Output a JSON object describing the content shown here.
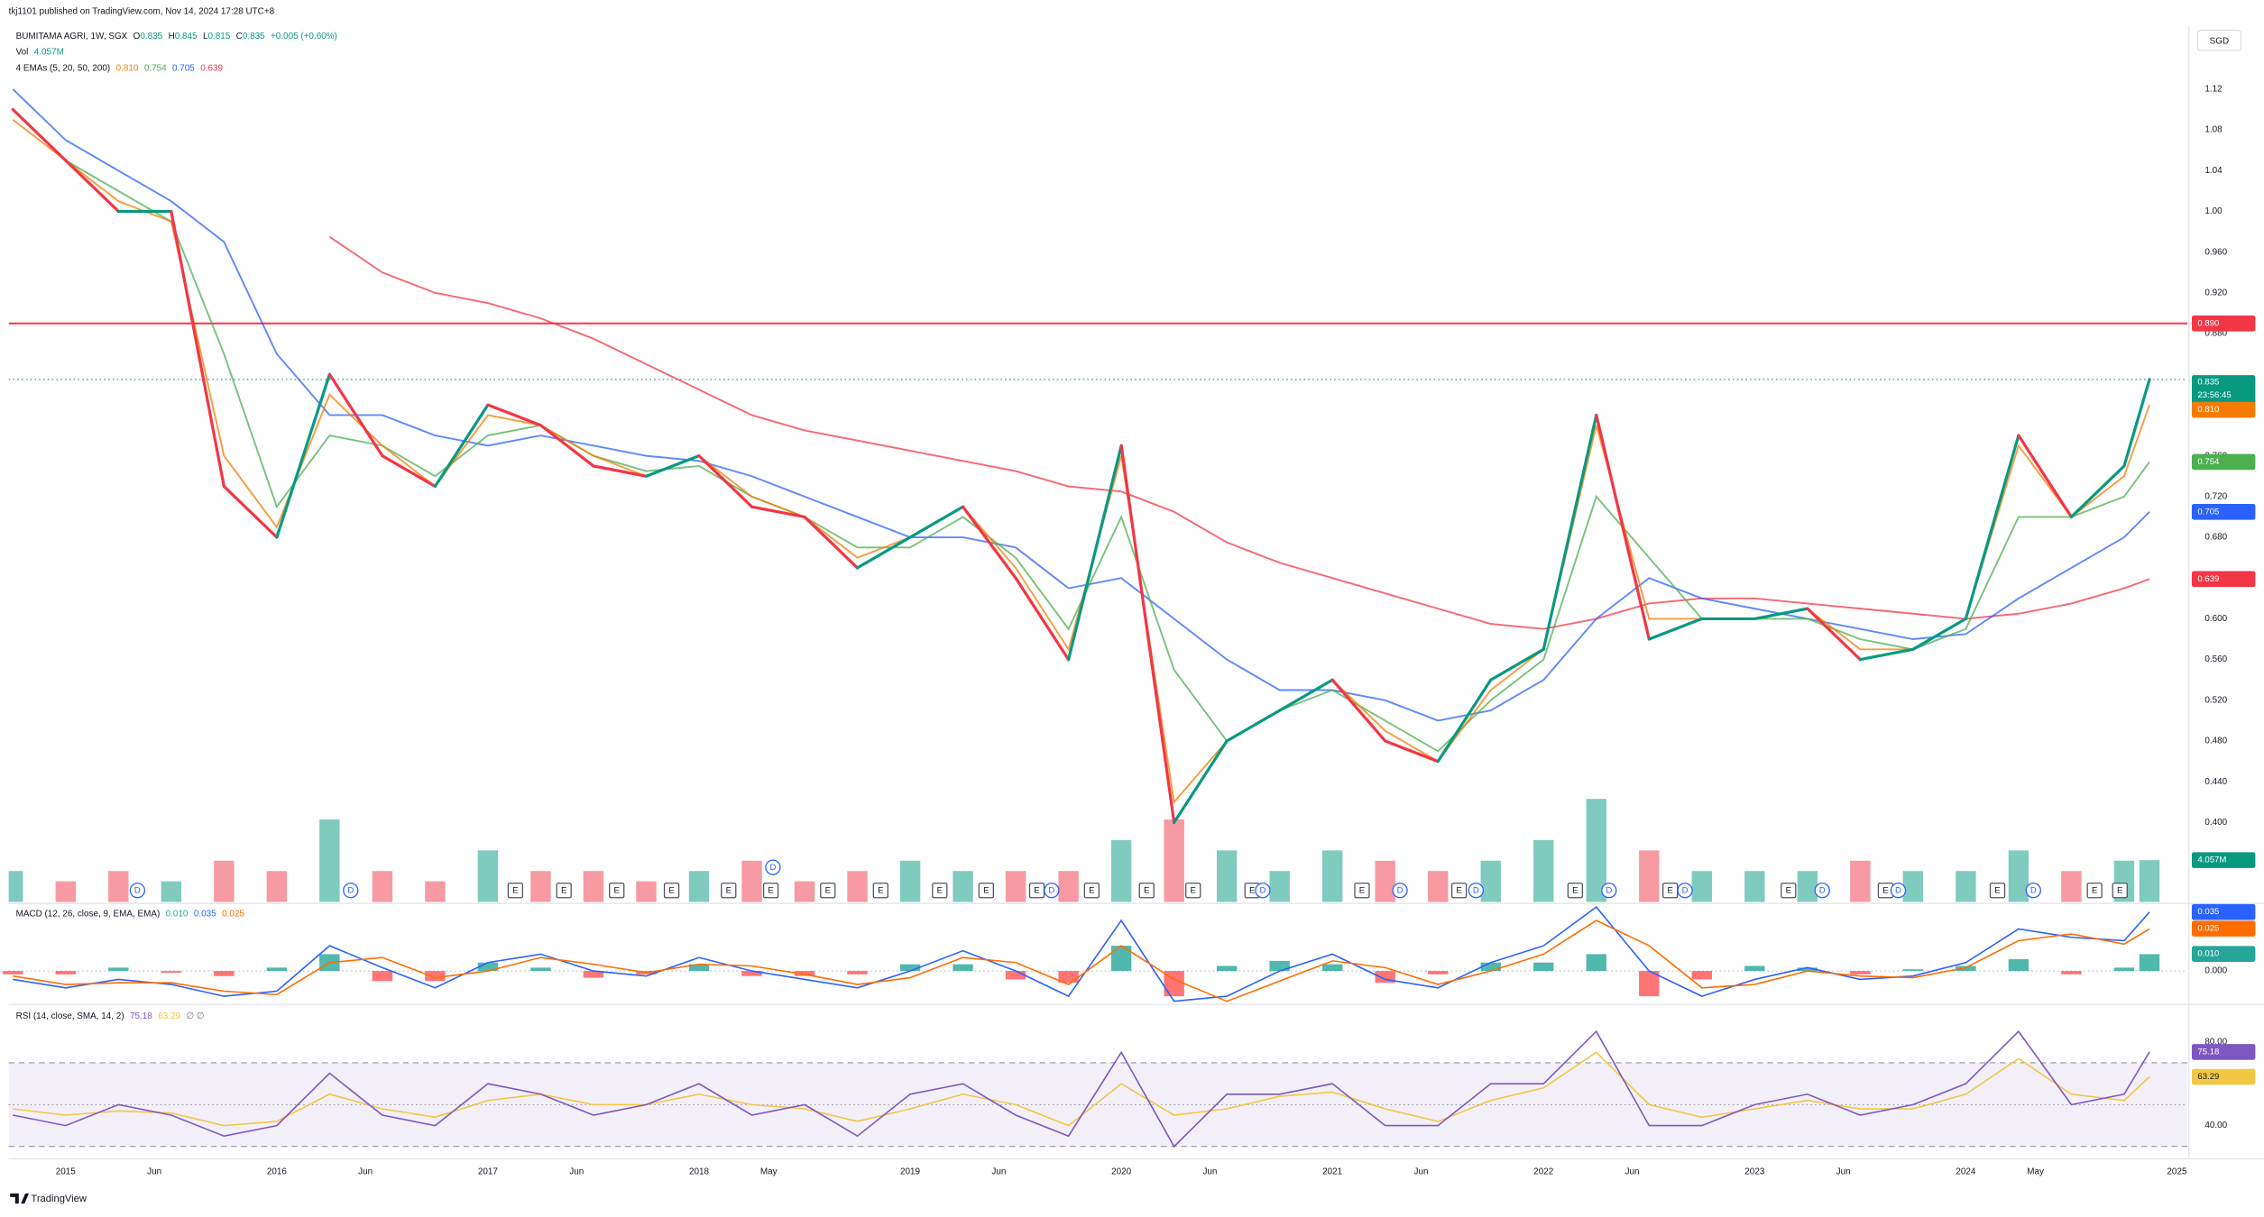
{
  "header": {
    "publisher": "tkj1101 published on TradingView.com, Nov 14, 2024 17:28 UTC+8",
    "currency": "SGD",
    "brand": "TradingView"
  },
  "chart_data": [
    {
      "type": "line",
      "title": "BUMITAMA AGRI, 1W, SGX",
      "ohlc": [
        {
          "label": "O",
          "value": 0.835
        },
        {
          "label": "H",
          "value": 0.845
        },
        {
          "label": "L",
          "value": 0.815
        },
        {
          "label": "C",
          "value": 0.835
        }
      ],
      "change": "+0.005 (+0.60%)",
      "x": [
        2014.75,
        2015,
        2015.25,
        2015.5,
        2015.75,
        2016,
        2016.25,
        2016.5,
        2016.75,
        2017,
        2017.25,
        2017.5,
        2017.75,
        2018,
        2018.25,
        2018.5,
        2018.75,
        2019,
        2019.25,
        2019.5,
        2019.75,
        2020,
        2020.25,
        2020.5,
        2020.75,
        2021,
        2021.25,
        2021.5,
        2021.75,
        2022,
        2022.25,
        2022.5,
        2022.75,
        2023,
        2023.25,
        2023.5,
        2023.75,
        2024,
        2024.25,
        2024.5,
        2024.75,
        2024.87
      ],
      "close": {
        "color": "#089981",
        "down_color": "#f23645",
        "countdown": "23:56:45",
        "values": [
          1.1,
          1.05,
          1.0,
          1.0,
          0.73,
          0.68,
          0.84,
          0.76,
          0.73,
          0.81,
          0.79,
          0.75,
          0.74,
          0.76,
          0.71,
          0.7,
          0.65,
          0.68,
          0.71,
          0.64,
          0.56,
          0.77,
          0.4,
          0.48,
          0.51,
          0.54,
          0.48,
          0.46,
          0.54,
          0.57,
          0.8,
          0.58,
          0.6,
          0.6,
          0.61,
          0.56,
          0.57,
          0.6,
          0.78,
          0.7,
          0.75,
          0.835
        ]
      },
      "emas": {
        "label": "4 EMAs (5, 20, 50, 200)",
        "series": [
          {
            "color": "#f57c00",
            "last_label": "0.810",
            "values": [
              1.09,
              1.05,
              1.01,
              0.99,
              0.76,
              0.69,
              0.82,
              0.77,
              0.73,
              0.8,
              0.79,
              0.76,
              0.74,
              0.76,
              0.72,
              0.7,
              0.66,
              0.68,
              0.71,
              0.65,
              0.57,
              0.76,
              0.42,
              0.48,
              0.51,
              0.54,
              0.49,
              0.46,
              0.53,
              0.57,
              0.79,
              0.6,
              0.6,
              0.6,
              0.61,
              0.57,
              0.57,
              0.6,
              0.77,
              0.7,
              0.74,
              0.81
            ]
          },
          {
            "color": "#4caf50",
            "last_label": "0.754",
            "values": [
              1.1,
              1.05,
              1.02,
              0.99,
              0.86,
              0.71,
              0.78,
              0.77,
              0.74,
              0.78,
              0.79,
              0.76,
              0.745,
              0.75,
              0.72,
              0.7,
              0.67,
              0.67,
              0.7,
              0.66,
              0.59,
              0.7,
              0.55,
              0.48,
              0.51,
              0.53,
              0.5,
              0.47,
              0.52,
              0.56,
              0.72,
              0.66,
              0.6,
              0.6,
              0.6,
              0.58,
              0.57,
              0.59,
              0.7,
              0.7,
              0.72,
              0.754
            ]
          },
          {
            "color": "#2962ff",
            "last_label": "0.705",
            "values": [
              1.12,
              1.07,
              1.04,
              1.01,
              0.97,
              0.86,
              0.8,
              0.8,
              0.78,
              0.77,
              0.78,
              0.77,
              0.76,
              0.755,
              0.74,
              0.72,
              0.7,
              0.68,
              0.68,
              0.67,
              0.63,
              0.64,
              0.6,
              0.56,
              0.53,
              0.53,
              0.52,
              0.5,
              0.51,
              0.54,
              0.6,
              0.64,
              0.62,
              0.61,
              0.6,
              0.59,
              0.58,
              0.585,
              0.62,
              0.65,
              0.68,
              0.705
            ]
          },
          {
            "color": "#f23645",
            "last_label": "0.639",
            "values": [
              null,
              null,
              null,
              null,
              null,
              null,
              0.975,
              0.94,
              0.92,
              0.91,
              0.895,
              0.875,
              0.85,
              0.825,
              0.8,
              0.785,
              0.775,
              0.765,
              0.755,
              0.745,
              0.73,
              0.725,
              0.705,
              0.675,
              0.655,
              0.64,
              0.625,
              0.61,
              0.595,
              0.59,
              0.6,
              0.615,
              0.62,
              0.62,
              0.615,
              0.61,
              0.605,
              0.6,
              0.605,
              0.615,
              0.63,
              0.639
            ]
          }
        ]
      },
      "volume": {
        "label": "Vol",
        "last_label": "4.057M",
        "ylim": [
          0,
          14
        ],
        "up_color": "#7fccbf",
        "down_color": "#f79aa2",
        "values": [
          3,
          2,
          3,
          2,
          4,
          3,
          8,
          3,
          2,
          5,
          3,
          3,
          2,
          3,
          4,
          2,
          3,
          4,
          3,
          3,
          3,
          6,
          8,
          5,
          3,
          5,
          4,
          3,
          4,
          6,
          10,
          5,
          3,
          3,
          3,
          4,
          3,
          3,
          5,
          3,
          4,
          4.057
        ]
      },
      "hline": {
        "value": 0.89,
        "label": "0.890",
        "color": "#f23645"
      },
      "events": [
        {
          "t": 2015.34,
          "label": "D"
        },
        {
          "t": 2016.35,
          "label": "D"
        },
        {
          "t": 2017.13,
          "label": "E"
        },
        {
          "t": 2017.36,
          "label": "E"
        },
        {
          "t": 2017.61,
          "label": "E"
        },
        {
          "t": 2017.87,
          "label": "E"
        },
        {
          "t": 2018.14,
          "label": "E"
        },
        {
          "t": 2018.34,
          "label": "E"
        },
        {
          "t": 2018.35,
          "label": "D"
        },
        {
          "t": 2018.61,
          "label": "E"
        },
        {
          "t": 2018.86,
          "label": "E"
        },
        {
          "t": 2019.14,
          "label": "E"
        },
        {
          "t": 2019.36,
          "label": "E"
        },
        {
          "t": 2019.6,
          "label": "E"
        },
        {
          "t": 2019.67,
          "label": "D"
        },
        {
          "t": 2019.86,
          "label": "E"
        },
        {
          "t": 2020.12,
          "label": "E"
        },
        {
          "t": 2020.34,
          "label": "E"
        },
        {
          "t": 2020.62,
          "label": "E"
        },
        {
          "t": 2020.67,
          "label": "D"
        },
        {
          "t": 2021.14,
          "label": "E"
        },
        {
          "t": 2021.32,
          "label": "D"
        },
        {
          "t": 2021.6,
          "label": "E"
        },
        {
          "t": 2021.68,
          "label": "D"
        },
        {
          "t": 2022.15,
          "label": "E"
        },
        {
          "t": 2022.31,
          "label": "D"
        },
        {
          "t": 2022.6,
          "label": "E"
        },
        {
          "t": 2022.67,
          "label": "D"
        },
        {
          "t": 2023.16,
          "label": "E"
        },
        {
          "t": 2023.32,
          "label": "D"
        },
        {
          "t": 2023.62,
          "label": "E"
        },
        {
          "t": 2023.68,
          "label": "D"
        },
        {
          "t": 2024.15,
          "label": "E"
        },
        {
          "t": 2024.32,
          "label": "D"
        },
        {
          "t": 2024.61,
          "label": "E"
        },
        {
          "t": 2024.73,
          "label": "E"
        }
      ],
      "xlim": [
        2014.73,
        2025.05
      ],
      "ylim": [
        0.322,
        1.182
      ],
      "yticks": [
        1.12,
        1.08,
        1.04,
        {
          "value": 1,
          "label": "1.00"
        },
        {
          "value": 0.96,
          "label": "0.960"
        },
        {
          "value": 0.92,
          "label": "0.920"
        },
        {
          "value": 0.88,
          "label": "0.880"
        },
        {
          "value": 0.76,
          "label": "0.760"
        },
        {
          "value": 0.72,
          "label": "0.720"
        },
        {
          "value": 0.68,
          "label": "0.680"
        },
        {
          "value": 0.64,
          "label": "0.640"
        },
        {
          "value": 0.6,
          "label": "0.600"
        },
        {
          "value": 0.56,
          "label": "0.560"
        },
        {
          "value": 0.52,
          "label": "0.520"
        },
        {
          "value": 0.48,
          "label": "0.480"
        },
        {
          "value": 0.44,
          "label": "0.440"
        },
        {
          "value": 0.4,
          "label": "0.400"
        }
      ],
      "xticks": [
        2015,
        {
          "value": 2015.42,
          "label": "Jun"
        },
        2016,
        {
          "value": 2016.42,
          "label": "Jun"
        },
        2017,
        {
          "value": 2017.42,
          "label": "Jun"
        },
        2018,
        {
          "value": 2018.33,
          "label": "May"
        },
        2019,
        {
          "value": 2019.42,
          "label": "Jun"
        },
        2020,
        {
          "value": 2020.42,
          "label": "Jun"
        },
        2021,
        {
          "value": 2021.42,
          "label": "Jun"
        },
        2022,
        {
          "value": 2022.42,
          "label": "Jun"
        },
        2023,
        {
          "value": 2023.42,
          "label": "Jun"
        },
        2024,
        {
          "value": 2024.33,
          "label": "May"
        },
        2025
      ]
    },
    {
      "type": "macd",
      "title": "MACD (12, 26, close, 9, EMA, EMA)",
      "ylim": [
        -0.019,
        0.0393
      ],
      "yticks": [
        {
          "value": 0,
          "label": "0.000"
        }
      ],
      "histogram": {
        "up_color": "#26a69a",
        "down_color": "#ff5252",
        "last_label": "0.010",
        "values": [
          -0.002,
          -0.002,
          0.002,
          -0.001,
          -0.003,
          0.002,
          0.01,
          -0.006,
          -0.006,
          0.005,
          0.002,
          -0.004,
          -0.002,
          0.004,
          -0.003,
          -0.003,
          -0.002,
          0.004,
          0.004,
          -0.005,
          -0.007,
          0.015,
          -0.015,
          0.003,
          0.006,
          0.004,
          -0.007,
          -0.002,
          0.005,
          0.005,
          0.01,
          -0.015,
          -0.005,
          0.003,
          0.002,
          -0.002,
          0.001,
          0.003,
          0.007,
          -0.002,
          0.002,
          0.01
        ]
      },
      "macd": {
        "color": "#2962ff",
        "last_label": "0.035",
        "values": [
          -0.005,
          -0.01,
          -0.005,
          -0.008,
          -0.015,
          -0.012,
          0.015,
          0.002,
          -0.01,
          0.005,
          0.01,
          0,
          -0.003,
          0.008,
          0,
          -0.005,
          -0.01,
          0,
          0.012,
          0,
          -0.015,
          0.03,
          -0.018,
          -0.015,
          0,
          0.01,
          -0.005,
          -0.01,
          0.005,
          0.015,
          0.038,
          0,
          -0.015,
          -0.005,
          0.002,
          -0.005,
          -0.003,
          0.005,
          0.025,
          0.02,
          0.018,
          0.035
        ]
      },
      "signal": {
        "color": "#ff6d00",
        "last_label": "0.025",
        "values": [
          -0.003,
          -0.008,
          -0.007,
          -0.007,
          -0.012,
          -0.014,
          0.005,
          0.008,
          -0.004,
          0,
          0.008,
          0.004,
          -0.001,
          0.004,
          0.003,
          -0.002,
          -0.008,
          -0.004,
          0.008,
          0.005,
          -0.008,
          0.015,
          -0.005,
          -0.018,
          -0.006,
          0.006,
          0.002,
          -0.008,
          0,
          0.01,
          0.03,
          0.015,
          -0.01,
          -0.008,
          0,
          -0.003,
          -0.004,
          0.002,
          0.018,
          0.022,
          0.016,
          0.025
        ]
      }
    },
    {
      "type": "rsi",
      "title": "RSI (14, close, SMA, 14, 2)",
      "icons": "∅ ∅",
      "ylim": [
        26.2,
        97.2
      ],
      "yticks": [
        {
          "value": 80,
          "label": "80.00"
        },
        {
          "value": 40,
          "label": "40.00"
        }
      ],
      "band": [
        30,
        70
      ],
      "midline": 50,
      "band_color": "#7e57c2",
      "rsi": {
        "color": "#7e57c2",
        "values": [
          45,
          40,
          50,
          45,
          35,
          40,
          65,
          45,
          40,
          60,
          55,
          45,
          50,
          60,
          45,
          50,
          35,
          55,
          60,
          45,
          35,
          75,
          30,
          55,
          55,
          60,
          40,
          40,
          60,
          60,
          85,
          40,
          40,
          50,
          55,
          45,
          50,
          60,
          85,
          50,
          55,
          75.18
        ]
      },
      "ma": {
        "color": "#f2c744",
        "values": [
          48,
          45,
          47,
          46,
          40,
          42,
          55,
          48,
          44,
          52,
          55,
          50,
          50,
          55,
          50,
          48,
          42,
          48,
          55,
          50,
          40,
          60,
          45,
          48,
          54,
          56,
          48,
          42,
          52,
          58,
          75,
          50,
          44,
          48,
          52,
          48,
          48,
          55,
          72,
          55,
          52,
          63.29
        ]
      }
    }
  ]
}
